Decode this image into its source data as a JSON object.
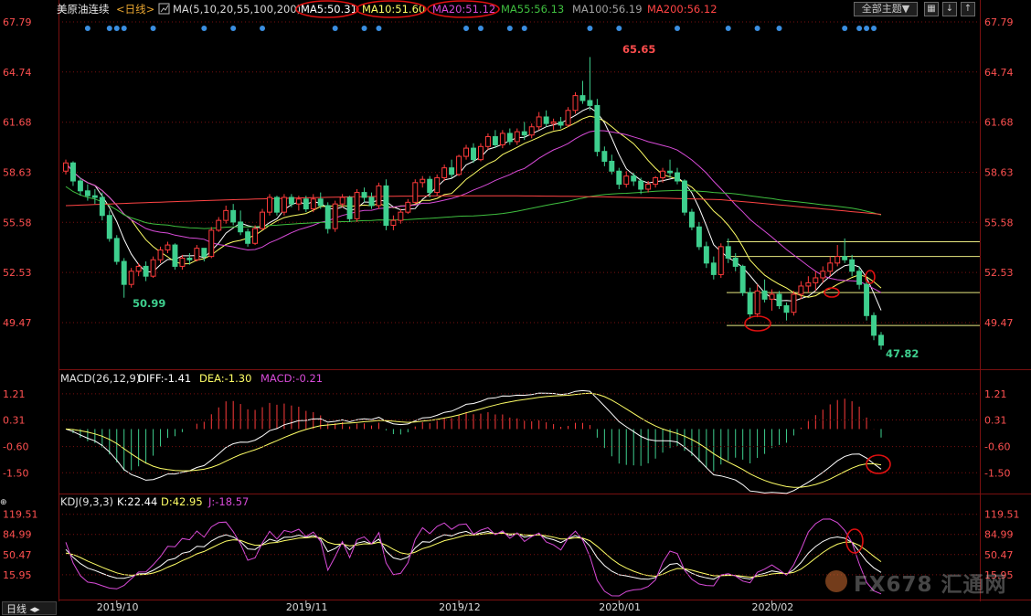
{
  "header": {
    "symbol": "美原油连续",
    "period_label": "<日线>",
    "ma_params": "MA(5,10,20,55,100,200)",
    "ma5": "MA5:50.31",
    "ma10": "MA10:51.60",
    "ma20": "MA20:51.12",
    "ma55": "MA55:56.13",
    "ma100": "MA100:56.19",
    "ma200": "MA200:56.12",
    "theme_button": "全部主题",
    "theme_arrow": "▼"
  },
  "macd_header": {
    "params": "MACD(26,12,9)",
    "diff": "DIFF:-1.41",
    "dea": "DEA:-1.30",
    "macd": "MACD:-0.21"
  },
  "kdj_header": {
    "params": "KDJ(9,3,3)",
    "k": "K:22.44",
    "d": "D:42.95",
    "j": "J:-18.57"
  },
  "period_tab": "日线",
  "watermark": "FX678 汇通网",
  "colors": {
    "up": "#ff3b3b",
    "down": "#3ecf8e",
    "ma5": "#ffffff",
    "ma10": "#ffff66",
    "ma20": "#d84bd8",
    "ma55": "#3fbf3f",
    "ma100": "#9a9a9a",
    "ma200": "#ff4444",
    "annotation": "#e01010",
    "grid": "#7a1010"
  },
  "chart_data": [
    {
      "type": "candlestick",
      "title": "美原油连续 日线",
      "ylim": [
        47.3,
        67.9
      ],
      "y_ticks": [
        "67.79",
        "64.74",
        "61.68",
        "58.63",
        "55.58",
        "52.53",
        "49.47"
      ],
      "x_ticks": [
        "2019/10",
        "2019/11",
        "2019/12",
        "2020/01",
        "2020/02"
      ],
      "high_label": "65.65",
      "low_labels": [
        "50.99",
        "47.82"
      ],
      "ohlc": [
        [
          58.7,
          59.4,
          58.5,
          59.2
        ],
        [
          59.2,
          59.3,
          57.8,
          58.1
        ],
        [
          58.1,
          58.3,
          57.2,
          57.5
        ],
        [
          57.5,
          57.9,
          56.9,
          57.2
        ],
        [
          57.2,
          57.6,
          56.7,
          57.1
        ],
        [
          57.1,
          57.4,
          55.7,
          56.0
        ],
        [
          56.0,
          56.3,
          54.4,
          54.6
        ],
        [
          54.6,
          54.8,
          53.0,
          53.2
        ],
        [
          53.2,
          53.4,
          50.99,
          51.8
        ],
        [
          51.8,
          52.8,
          51.6,
          52.6
        ],
        [
          52.6,
          53.1,
          52.3,
          52.9
        ],
        [
          52.9,
          53.2,
          52.0,
          52.3
        ],
        [
          52.3,
          53.5,
          52.2,
          53.3
        ],
        [
          53.3,
          54.1,
          53.1,
          53.9
        ],
        [
          53.9,
          54.4,
          53.7,
          54.2
        ],
        [
          54.2,
          54.3,
          52.7,
          52.9
        ],
        [
          52.9,
          53.6,
          52.7,
          53.4
        ],
        [
          53.4,
          53.7,
          53.0,
          53.3
        ],
        [
          53.3,
          54.2,
          53.2,
          54.0
        ],
        [
          54.0,
          54.0,
          53.2,
          53.5
        ],
        [
          53.5,
          55.3,
          53.4,
          55.1
        ],
        [
          55.1,
          55.9,
          55.0,
          55.7
        ],
        [
          55.7,
          56.6,
          55.5,
          56.3
        ],
        [
          56.3,
          56.7,
          55.4,
          55.6
        ],
        [
          55.6,
          56.3,
          54.8,
          55.0
        ],
        [
          55.0,
          55.2,
          54.1,
          54.3
        ],
        [
          54.3,
          55.4,
          54.2,
          55.2
        ],
        [
          55.2,
          56.4,
          55.1,
          56.2
        ],
        [
          56.2,
          57.3,
          56.0,
          57.1
        ],
        [
          57.1,
          57.2,
          56.0,
          56.2
        ],
        [
          56.2,
          57.3,
          56.0,
          57.1
        ],
        [
          57.1,
          57.3,
          56.5,
          56.7
        ],
        [
          56.7,
          57.2,
          56.3,
          57.0
        ],
        [
          57.0,
          57.2,
          56.2,
          56.4
        ],
        [
          56.4,
          57.3,
          56.2,
          57.0
        ],
        [
          57.0,
          57.4,
          56.4,
          56.6
        ],
        [
          56.6,
          56.8,
          54.9,
          55.2
        ],
        [
          55.2,
          56.9,
          55.0,
          56.7
        ],
        [
          56.7,
          57.3,
          56.5,
          57.1
        ],
        [
          57.1,
          57.2,
          55.6,
          55.8
        ],
        [
          55.8,
          57.6,
          55.6,
          57.4
        ],
        [
          57.4,
          57.7,
          56.8,
          57.1
        ],
        [
          57.1,
          57.4,
          56.4,
          56.6
        ],
        [
          56.6,
          58.0,
          56.4,
          57.8
        ],
        [
          57.8,
          58.2,
          55.1,
          55.4
        ],
        [
          55.4,
          56.0,
          55.1,
          55.7
        ],
        [
          55.7,
          56.4,
          55.5,
          56.2
        ],
        [
          56.2,
          57.0,
          56.1,
          56.8
        ],
        [
          56.8,
          58.2,
          56.7,
          58.0
        ],
        [
          58.0,
          58.4,
          57.7,
          58.2
        ],
        [
          58.2,
          58.4,
          57.1,
          57.4
        ],
        [
          57.4,
          58.5,
          57.2,
          58.3
        ],
        [
          58.3,
          59.1,
          58.1,
          58.9
        ],
        [
          58.9,
          59.4,
          58.3,
          58.5
        ],
        [
          58.5,
          59.7,
          58.4,
          59.6
        ],
        [
          59.6,
          60.3,
          59.4,
          60.1
        ],
        [
          60.1,
          60.4,
          59.2,
          59.4
        ],
        [
          59.4,
          60.4,
          59.3,
          60.2
        ],
        [
          60.2,
          61.0,
          60.0,
          60.8
        ],
        [
          60.8,
          61.2,
          60.1,
          60.3
        ],
        [
          60.3,
          61.2,
          60.1,
          61.0
        ],
        [
          61.0,
          61.3,
          60.3,
          60.5
        ],
        [
          60.5,
          61.3,
          60.3,
          61.1
        ],
        [
          61.1,
          61.7,
          60.6,
          60.9
        ],
        [
          60.9,
          61.6,
          60.7,
          61.4
        ],
        [
          61.4,
          62.3,
          61.2,
          62.0
        ],
        [
          62.0,
          62.4,
          61.4,
          61.6
        ],
        [
          61.6,
          61.9,
          61.2,
          61.7
        ],
        [
          61.7,
          62.0,
          61.3,
          61.5
        ],
        [
          61.5,
          62.6,
          61.4,
          62.4
        ],
        [
          62.4,
          63.5,
          62.2,
          63.3
        ],
        [
          63.3,
          64.2,
          62.8,
          63.0
        ],
        [
          63.0,
          65.65,
          62.4,
          62.7
        ],
        [
          62.7,
          63.1,
          59.6,
          59.9
        ],
        [
          59.9,
          60.2,
          59.0,
          59.3
        ],
        [
          59.3,
          59.7,
          58.5,
          58.7
        ],
        [
          58.7,
          58.9,
          57.6,
          57.9
        ],
        [
          57.9,
          58.7,
          57.7,
          58.4
        ],
        [
          58.4,
          58.6,
          57.8,
          58.1
        ],
        [
          58.1,
          58.3,
          57.3,
          57.6
        ],
        [
          57.6,
          58.1,
          57.4,
          57.9
        ],
        [
          57.9,
          58.4,
          57.7,
          58.3
        ],
        [
          58.3,
          58.9,
          58.0,
          58.7
        ],
        [
          58.7,
          59.4,
          58.3,
          58.6
        ],
        [
          58.6,
          58.9,
          57.9,
          58.1
        ],
        [
          58.1,
          58.2,
          56.0,
          56.2
        ],
        [
          56.2,
          56.4,
          55.1,
          55.3
        ],
        [
          55.3,
          55.6,
          53.9,
          54.1
        ],
        [
          54.1,
          54.4,
          52.8,
          53.1
        ],
        [
          53.1,
          53.5,
          52.1,
          52.4
        ],
        [
          52.4,
          54.3,
          52.2,
          54.1
        ],
        [
          54.1,
          54.6,
          53.1,
          53.4
        ],
        [
          53.4,
          53.7,
          52.6,
          52.9
        ],
        [
          52.9,
          53.0,
          51.1,
          51.3
        ],
        [
          51.3,
          51.6,
          49.7,
          50.0
        ],
        [
          50.0,
          51.8,
          49.8,
          51.4
        ],
        [
          51.4,
          52.1,
          50.7,
          50.9
        ],
        [
          50.9,
          51.5,
          50.2,
          51.2
        ],
        [
          51.2,
          51.4,
          50.3,
          50.5
        ],
        [
          50.5,
          50.7,
          49.6,
          50.1
        ],
        [
          50.1,
          51.4,
          49.9,
          51.2
        ],
        [
          51.2,
          52.0,
          50.9,
          51.7
        ],
        [
          51.7,
          52.3,
          51.3,
          51.9
        ],
        [
          51.9,
          52.6,
          51.4,
          52.2
        ],
        [
          52.2,
          52.9,
          51.9,
          52.6
        ],
        [
          52.6,
          53.5,
          52.3,
          53.1
        ],
        [
          53.1,
          54.2,
          52.9,
          53.5
        ],
        [
          53.5,
          54.6,
          53.1,
          53.3
        ],
        [
          53.3,
          53.6,
          52.3,
          52.6
        ],
        [
          52.6,
          52.9,
          51.5,
          51.8
        ],
        [
          51.8,
          52.2,
          49.6,
          49.9
        ],
        [
          49.9,
          50.1,
          48.4,
          48.7
        ],
        [
          48.7,
          48.9,
          47.82,
          48.1
        ]
      ],
      "ma": {
        "MA5": 50.31,
        "MA10": 51.6,
        "MA20": 51.12,
        "MA55": 56.13,
        "MA100": 56.19,
        "MA200": 56.12
      },
      "horizontal_levels": [
        54.4,
        53.5,
        51.3,
        49.3
      ]
    },
    {
      "type": "bar+line",
      "title": "MACD(26,12,9)",
      "ylim": [
        -2.15,
        1.55
      ],
      "y_ticks": [
        "1.21",
        "0.31",
        "-0.60",
        "-1.50"
      ],
      "series": [
        {
          "name": "DIFF",
          "value": -1.41
        },
        {
          "name": "DEA",
          "value": -1.3
        },
        {
          "name": "MACD",
          "value": -0.21
        }
      ]
    },
    {
      "type": "line",
      "title": "KDJ(9,3,3)",
      "ylim": [
        -25,
        130
      ],
      "y_ticks": [
        "119.51",
        "84.99",
        "50.47",
        "15.95"
      ],
      "series": [
        {
          "name": "K",
          "value": 22.44
        },
        {
          "name": "D",
          "value": 42.95
        },
        {
          "name": "J",
          "value": -18.57
        }
      ]
    }
  ]
}
